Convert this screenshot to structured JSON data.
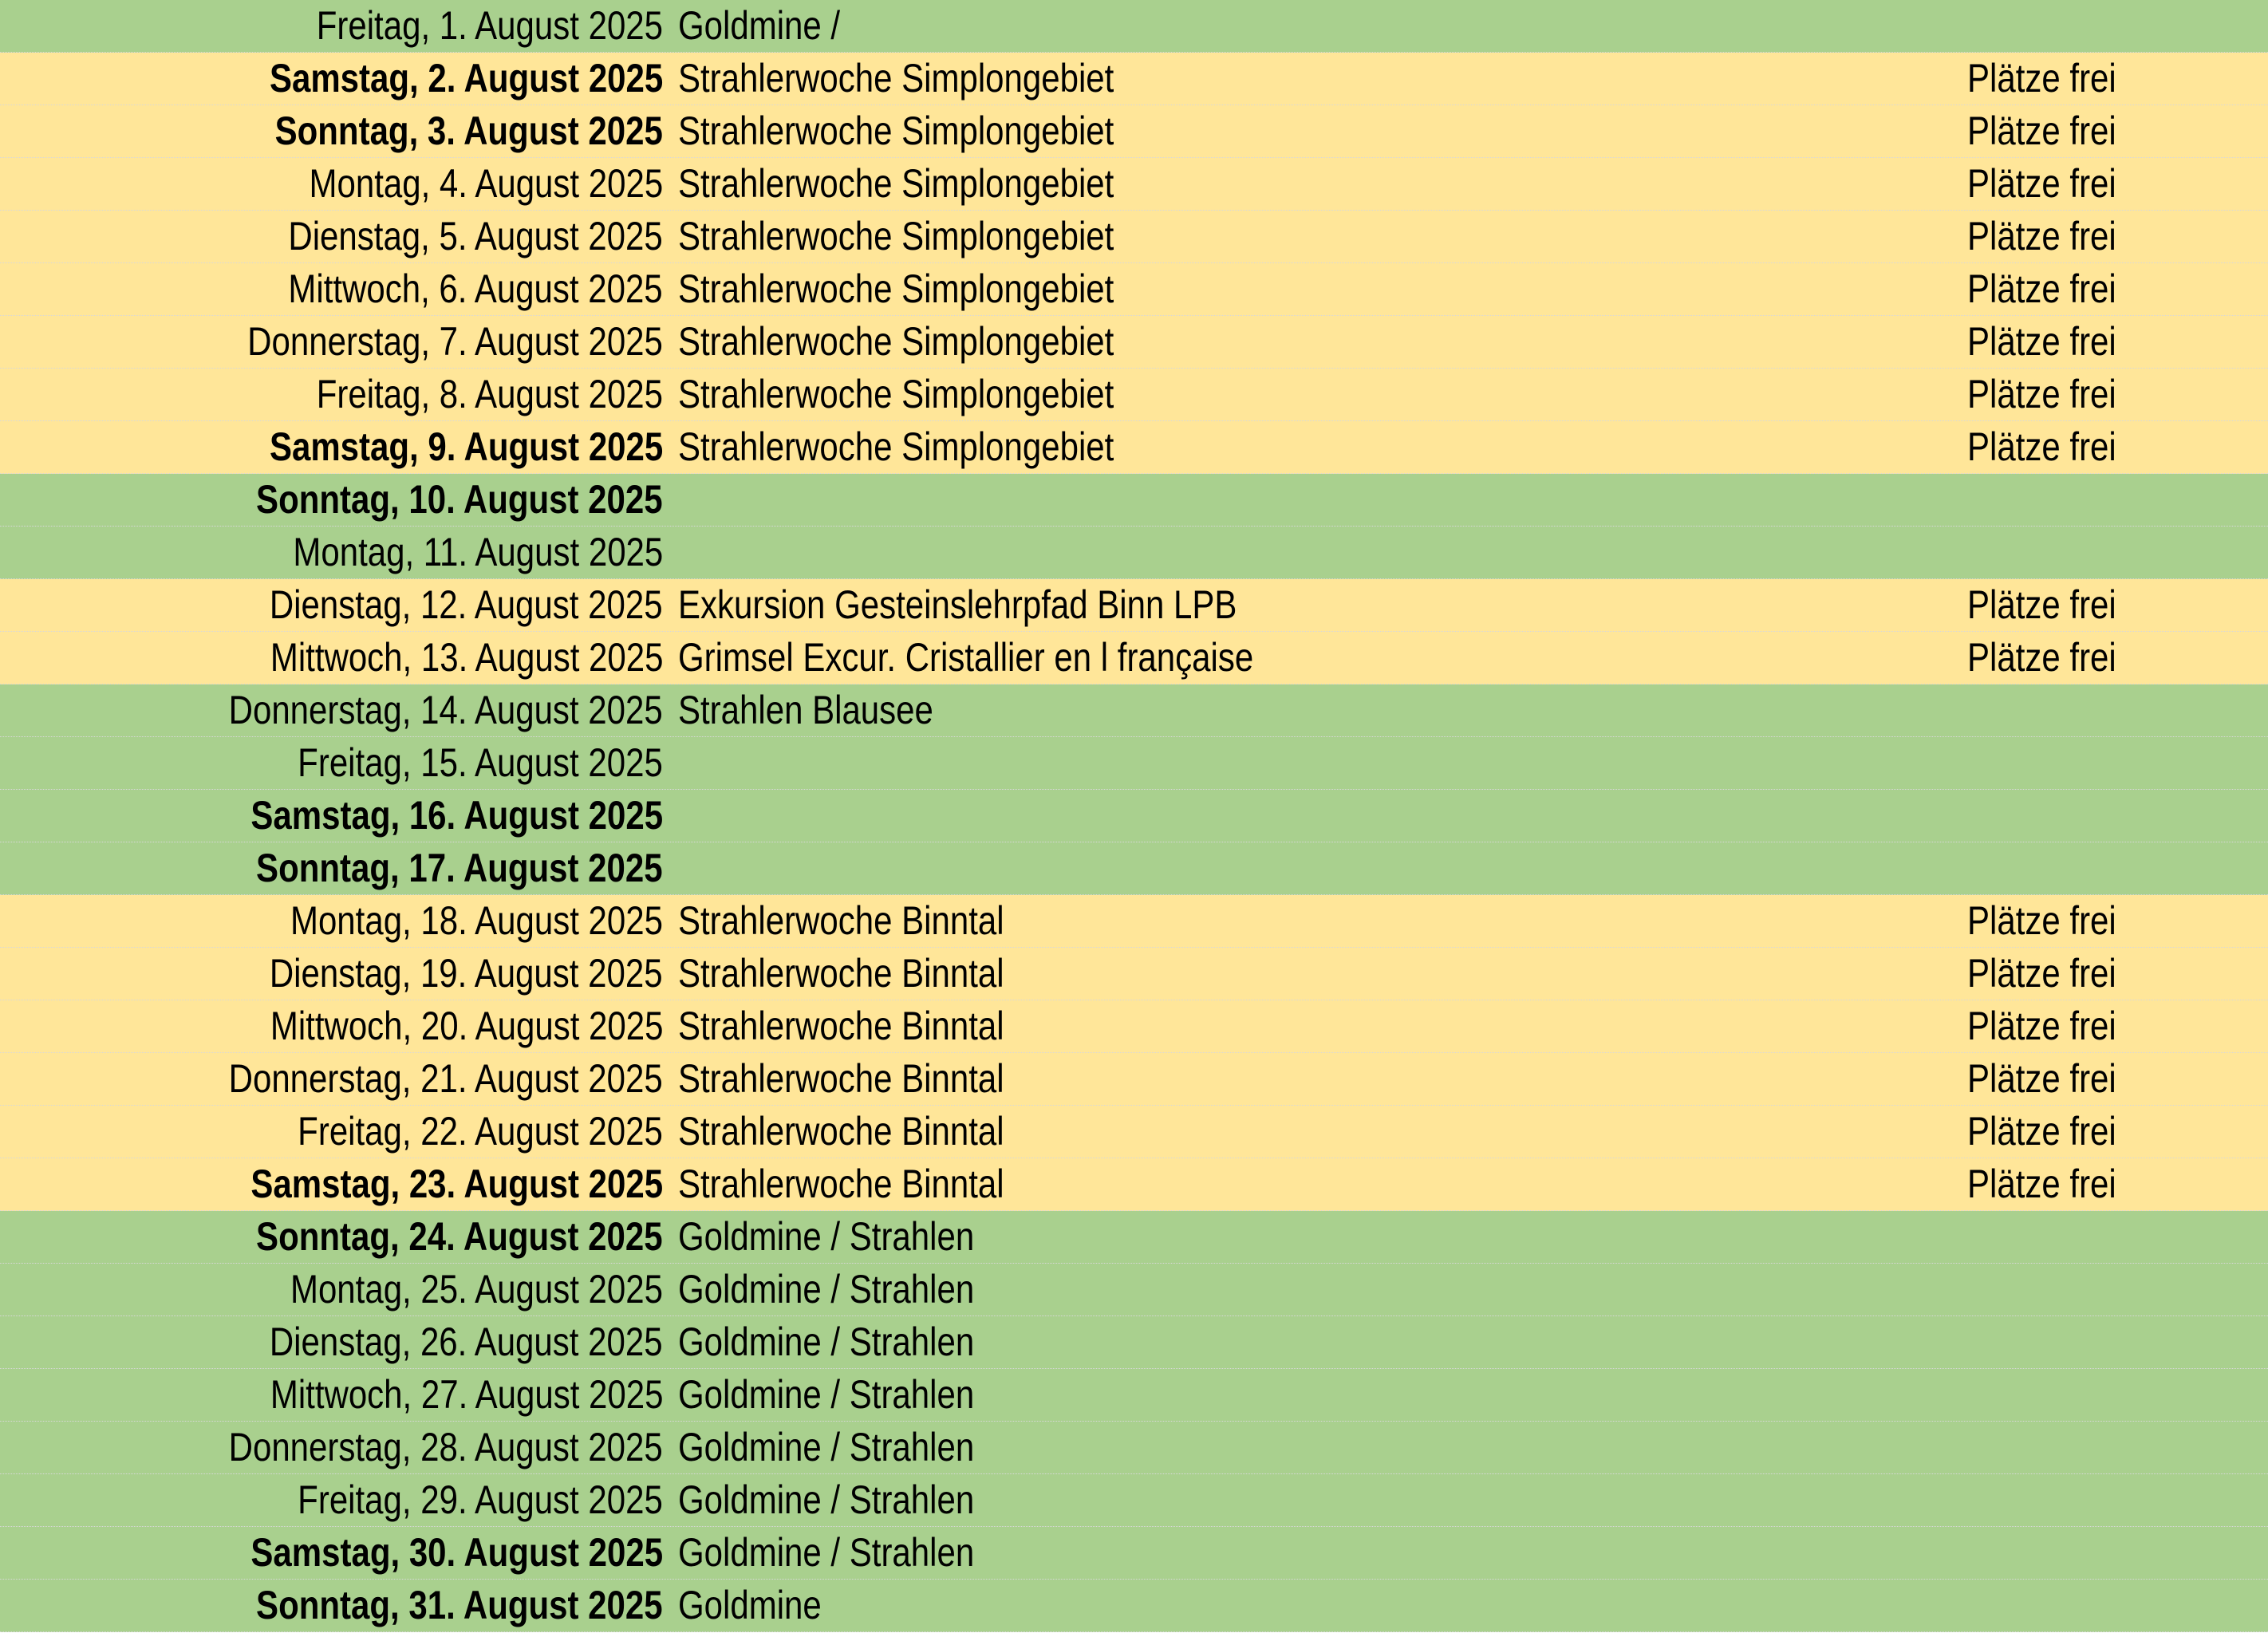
{
  "colors": {
    "free_day": "#a9d08e",
    "booking_open": "#ffe699"
  },
  "rows": [
    {
      "date": "Freitag, 1. August 2025",
      "event": "Goldmine /",
      "status": "",
      "color": "green",
      "weekend": false
    },
    {
      "date": "Samstag, 2. August 2025",
      "event": "Strahlerwoche Simplongebiet",
      "status": "Plätze frei",
      "color": "yellow",
      "weekend": true
    },
    {
      "date": "Sonntag, 3. August 2025",
      "event": "Strahlerwoche Simplongebiet",
      "status": "Plätze frei",
      "color": "yellow",
      "weekend": true
    },
    {
      "date": "Montag, 4. August 2025",
      "event": "Strahlerwoche Simplongebiet",
      "status": "Plätze frei",
      "color": "yellow",
      "weekend": false
    },
    {
      "date": "Dienstag, 5. August 2025",
      "event": "Strahlerwoche Simplongebiet",
      "status": "Plätze frei",
      "color": "yellow",
      "weekend": false
    },
    {
      "date": "Mittwoch, 6. August 2025",
      "event": "Strahlerwoche Simplongebiet",
      "status": "Plätze frei",
      "color": "yellow",
      "weekend": false
    },
    {
      "date": "Donnerstag, 7. August 2025",
      "event": "Strahlerwoche Simplongebiet",
      "status": "Plätze frei",
      "color": "yellow",
      "weekend": false
    },
    {
      "date": "Freitag, 8. August 2025",
      "event": "Strahlerwoche Simplongebiet",
      "status": "Plätze frei",
      "color": "yellow",
      "weekend": false
    },
    {
      "date": "Samstag, 9. August 2025",
      "event": "Strahlerwoche Simplongebiet",
      "status": "Plätze frei",
      "color": "yellow",
      "weekend": true
    },
    {
      "date": "Sonntag, 10. August 2025",
      "event": "",
      "status": "",
      "color": "green",
      "weekend": true
    },
    {
      "date": "Montag, 11. August 2025",
      "event": "",
      "status": "",
      "color": "green",
      "weekend": false
    },
    {
      "date": "Dienstag, 12. August 2025",
      "event": "Exkursion Gesteinslehrpfad Binn LPB",
      "status": "Plätze frei",
      "color": "yellow",
      "weekend": false
    },
    {
      "date": "Mittwoch, 13. August 2025",
      "event": "Grimsel Excur. Cristallier en l française",
      "status": "Plätze frei",
      "color": "yellow",
      "weekend": false
    },
    {
      "date": "Donnerstag, 14. August 2025",
      "event": "Strahlen Blausee",
      "status": "",
      "color": "green",
      "weekend": false
    },
    {
      "date": "Freitag, 15. August 2025",
      "event": "",
      "status": "",
      "color": "green",
      "weekend": false
    },
    {
      "date": "Samstag, 16. August 2025",
      "event": "",
      "status": "",
      "color": "green",
      "weekend": true
    },
    {
      "date": "Sonntag, 17. August 2025",
      "event": "",
      "status": "",
      "color": "green",
      "weekend": true
    },
    {
      "date": "Montag, 18. August 2025",
      "event": "Strahlerwoche Binntal",
      "status": "Plätze frei",
      "color": "yellow",
      "weekend": false
    },
    {
      "date": "Dienstag, 19. August 2025",
      "event": "Strahlerwoche Binntal",
      "status": "Plätze frei",
      "color": "yellow",
      "weekend": false
    },
    {
      "date": "Mittwoch, 20. August 2025",
      "event": "Strahlerwoche Binntal",
      "status": "Plätze frei",
      "color": "yellow",
      "weekend": false
    },
    {
      "date": "Donnerstag, 21. August 2025",
      "event": "Strahlerwoche Binntal",
      "status": "Plätze frei",
      "color": "yellow",
      "weekend": false
    },
    {
      "date": "Freitag, 22. August 2025",
      "event": "Strahlerwoche Binntal",
      "status": "Plätze frei",
      "color": "yellow",
      "weekend": false
    },
    {
      "date": "Samstag, 23. August 2025",
      "event": "Strahlerwoche Binntal",
      "status": "Plätze frei",
      "color": "yellow",
      "weekend": true
    },
    {
      "date": "Sonntag, 24. August 2025",
      "event": "Goldmine / Strahlen",
      "status": "",
      "color": "green",
      "weekend": true
    },
    {
      "date": "Montag, 25. August 2025",
      "event": "Goldmine / Strahlen",
      "status": "",
      "color": "green",
      "weekend": false
    },
    {
      "date": "Dienstag, 26. August 2025",
      "event": "Goldmine / Strahlen",
      "status": "",
      "color": "green",
      "weekend": false
    },
    {
      "date": "Mittwoch, 27. August 2025",
      "event": "Goldmine / Strahlen",
      "status": "",
      "color": "green",
      "weekend": false
    },
    {
      "date": "Donnerstag, 28. August 2025",
      "event": "Goldmine / Strahlen",
      "status": "",
      "color": "green",
      "weekend": false
    },
    {
      "date": "Freitag, 29. August 2025",
      "event": "Goldmine / Strahlen",
      "status": "",
      "color": "green",
      "weekend": false
    },
    {
      "date": "Samstag, 30. August 2025",
      "event": "Goldmine / Strahlen",
      "status": "",
      "color": "green",
      "weekend": true
    },
    {
      "date": "Sonntag, 31. August 2025",
      "event": "Goldmine",
      "status": "",
      "color": "green",
      "weekend": true
    }
  ]
}
